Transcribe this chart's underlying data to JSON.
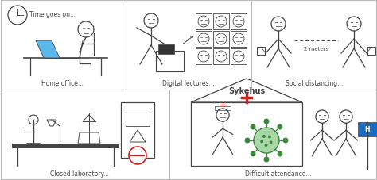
{
  "background_color": "#ffffff",
  "border_color": "#bbbbbb",
  "line_color": "#444444",
  "blue_color": "#5bb8e8",
  "red_color": "#cc2222",
  "green_color": "#3a8a3a",
  "panel_labels": [
    "Home office...",
    "Digital lectures...",
    "Social distancing...",
    "Closed laboratory...",
    "Difficult attendance..."
  ],
  "clock_text": "Time goes on...",
  "meters_text": "2 meters",
  "sykehus_text": "Sykehus"
}
